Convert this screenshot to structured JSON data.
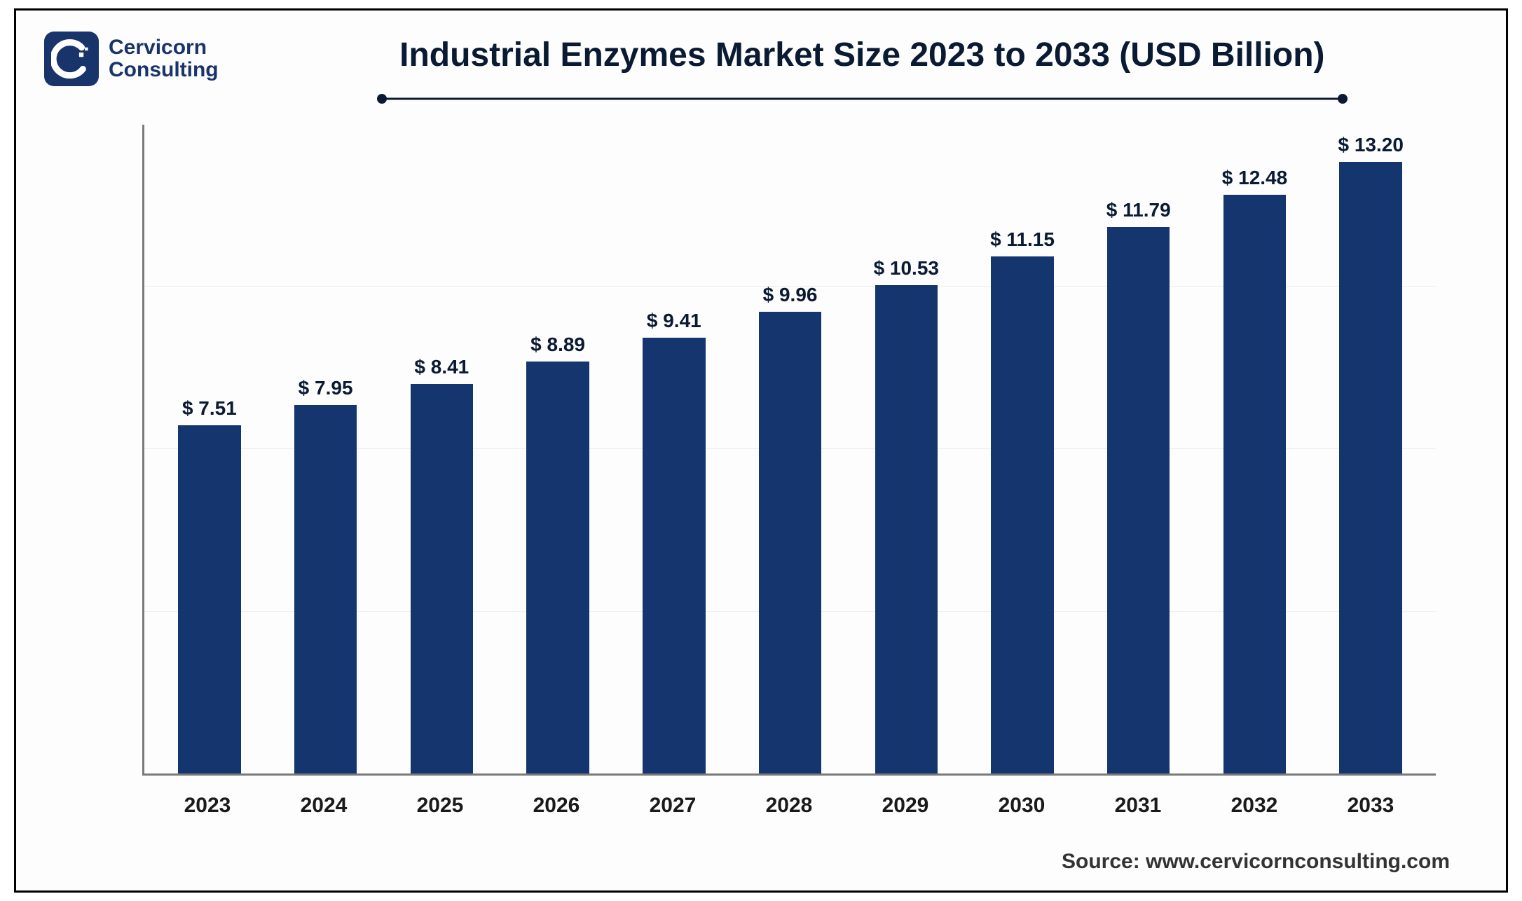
{
  "brand": {
    "name_line1": "Cervicorn",
    "name_line2": "Consulting",
    "logo_bg": "#19336b",
    "logo_fg": "#ffffff"
  },
  "title": "Industrial Enzymes Market Size 2023 to 2033 (USD Billion)",
  "title_fontsize": 48,
  "title_color": "#0a1a33",
  "rule_color": "#0a1a33",
  "source": "Source: www.cervicornconsulting.com",
  "source_fontsize": 30,
  "chart": {
    "type": "bar",
    "categories": [
      "2023",
      "2024",
      "2025",
      "2026",
      "2027",
      "2028",
      "2029",
      "2030",
      "2031",
      "2032",
      "2033"
    ],
    "values": [
      7.51,
      7.95,
      8.41,
      8.89,
      9.41,
      9.96,
      10.53,
      11.15,
      11.79,
      12.48,
      13.2
    ],
    "value_labels": [
      "$ 7.51",
      "$ 7.95",
      "$ 8.41",
      "$ 8.89",
      "$ 9.41",
      "$ 9.96",
      "$ 10.53",
      "$ 11.15",
      "$ 11.79",
      "$ 12.48",
      "$ 13.20"
    ],
    "bar_color": "#15356e",
    "ylim": [
      0,
      14
    ],
    "gridline_positions_pct": [
      25,
      50,
      75
    ],
    "grid_color": "#ececec",
    "axis_color": "#7a7a7a",
    "background_color": "#fdfdfd",
    "bar_width_pct": 54,
    "value_label_fontsize": 28,
    "category_label_fontsize": 30,
    "value_label_color": "#0a1a33"
  }
}
